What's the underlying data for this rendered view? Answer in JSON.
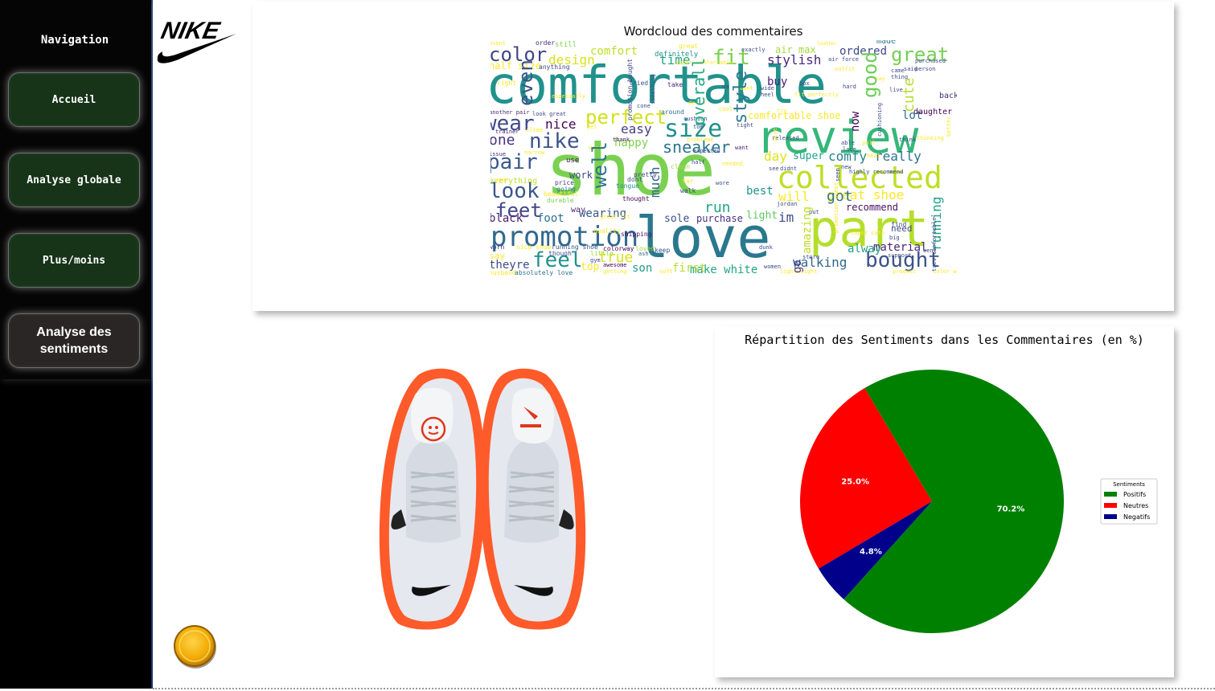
{
  "sidebar": {
    "title": "Navigation",
    "items": [
      {
        "label": "Accueil"
      },
      {
        "label": "Analyse globale"
      },
      {
        "label": "Plus/moins"
      },
      {
        "label": "Analyse des sentiments",
        "active": true
      }
    ]
  },
  "brand": {
    "logo_text": "NIKE",
    "logo_color": "#000000"
  },
  "wordcloud": {
    "title": "Wordcloud des commentaires",
    "words": [
      "comfortable",
      "shoe",
      "review",
      "love",
      "part",
      "promotion",
      "collected",
      "size",
      "nike",
      "color",
      "fit",
      "great",
      "perfect",
      "wear",
      "pair",
      "look",
      "feet",
      "bought",
      "feel",
      "sneaker",
      "easy",
      "nice",
      "happy",
      "good",
      "stylish",
      "comfort",
      "design",
      "air max",
      "ordered",
      "day",
      "run",
      "light",
      "got",
      "great shoe",
      "really",
      "comfy",
      "super",
      "material",
      "walking",
      "make white",
      "sole",
      "purchase",
      "black",
      "foot",
      "wearing",
      "theyre",
      "true",
      "top",
      "son",
      "first",
      "one",
      "much",
      "well",
      "work",
      "time",
      "half size",
      "overall",
      "style",
      "buy",
      "lot",
      "cute",
      "running",
      "recommend",
      "alway",
      "best",
      "will",
      "im",
      "amazing",
      "comfortable shoe",
      "daughter",
      "back",
      "even",
      "everything",
      "color way",
      "jordan",
      "made",
      "still",
      "order"
    ]
  },
  "pie": {
    "title": "Répartition des Sentiments dans les Commentaires (en %)",
    "legend_title": "Sentiments"
  },
  "chart_data": {
    "type": "pie",
    "title": "Répartition des Sentiments dans les Commentaires (en %)",
    "labels": [
      "Positifs",
      "Neutres",
      "Negatifs"
    ],
    "values": [
      70.2,
      25.0,
      4.8
    ],
    "value_labels": [
      "70.2%",
      "25.0%",
      "4.8%"
    ],
    "colors": [
      "#008000",
      "#ff0000",
      "#00008b"
    ],
    "legend_title": "Sentiments",
    "legend_position": "right"
  }
}
